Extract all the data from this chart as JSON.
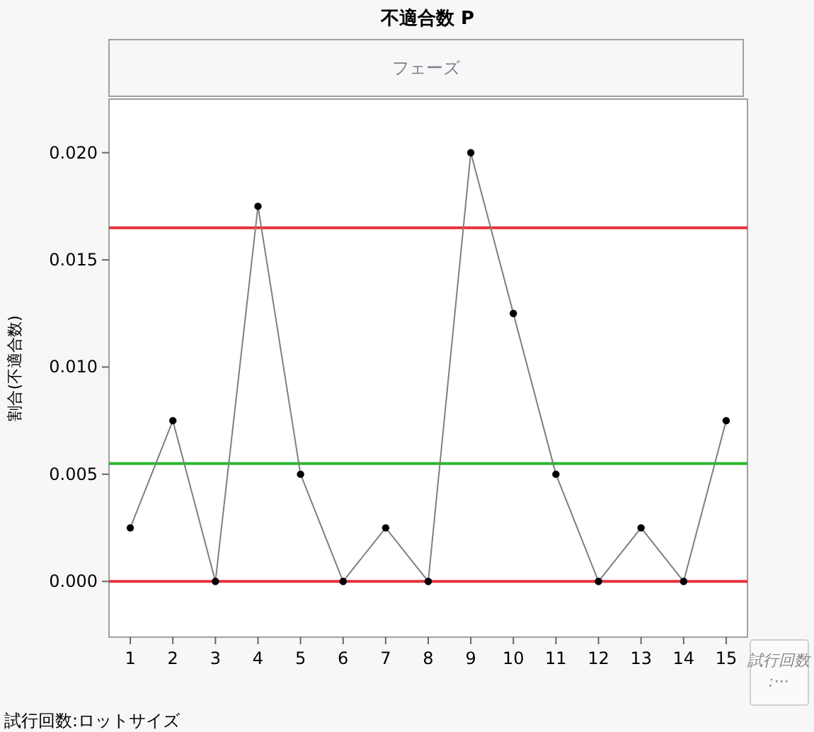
{
  "chart_data": {
    "type": "line",
    "title": "不適合数  P",
    "subtitle": "フェーズ",
    "ylabel": "割合(不適合数)",
    "annotations": [
      "試行回数:ロットサイズ",
      "試行回数:···"
    ],
    "x": [
      1,
      2,
      3,
      4,
      5,
      6,
      7,
      8,
      9,
      10,
      11,
      12,
      13,
      14,
      15
    ],
    "series": [
      {
        "color": "#7f7f7f",
        "values": [
          0.0025,
          0.0075,
          0,
          0.0175,
          0.005,
          0,
          0.0025,
          0,
          0.02,
          0.0125,
          0.005,
          0,
          0.0025,
          0,
          0.0075
        ]
      }
    ],
    "marker": "circle",
    "line_style": "solid",
    "xlim": [
      0.5,
      15.5
    ],
    "xticks": [
      1,
      2,
      3,
      4,
      5,
      6,
      7,
      8,
      9,
      10,
      11,
      12,
      13,
      14,
      15
    ],
    "ylim": [
      -0.0026,
      0.0225
    ],
    "yticks": [
      {
        "value": 0,
        "label": "0.000"
      },
      {
        "value": 0.005,
        "label": "0.005"
      },
      {
        "value": 0.01,
        "label": "0.010"
      },
      {
        "value": 0.015,
        "label": "0.015"
      },
      {
        "value": 0.02,
        "label": "0.020"
      }
    ],
    "ref_lines": [
      {
        "axis": "y",
        "value": 0.0165,
        "color": "#e8323c"
      },
      {
        "axis": "y",
        "value": 0.0055,
        "color": "#2db82d"
      },
      {
        "axis": "y",
        "value": 0,
        "color": "#e8323c"
      }
    ]
  }
}
